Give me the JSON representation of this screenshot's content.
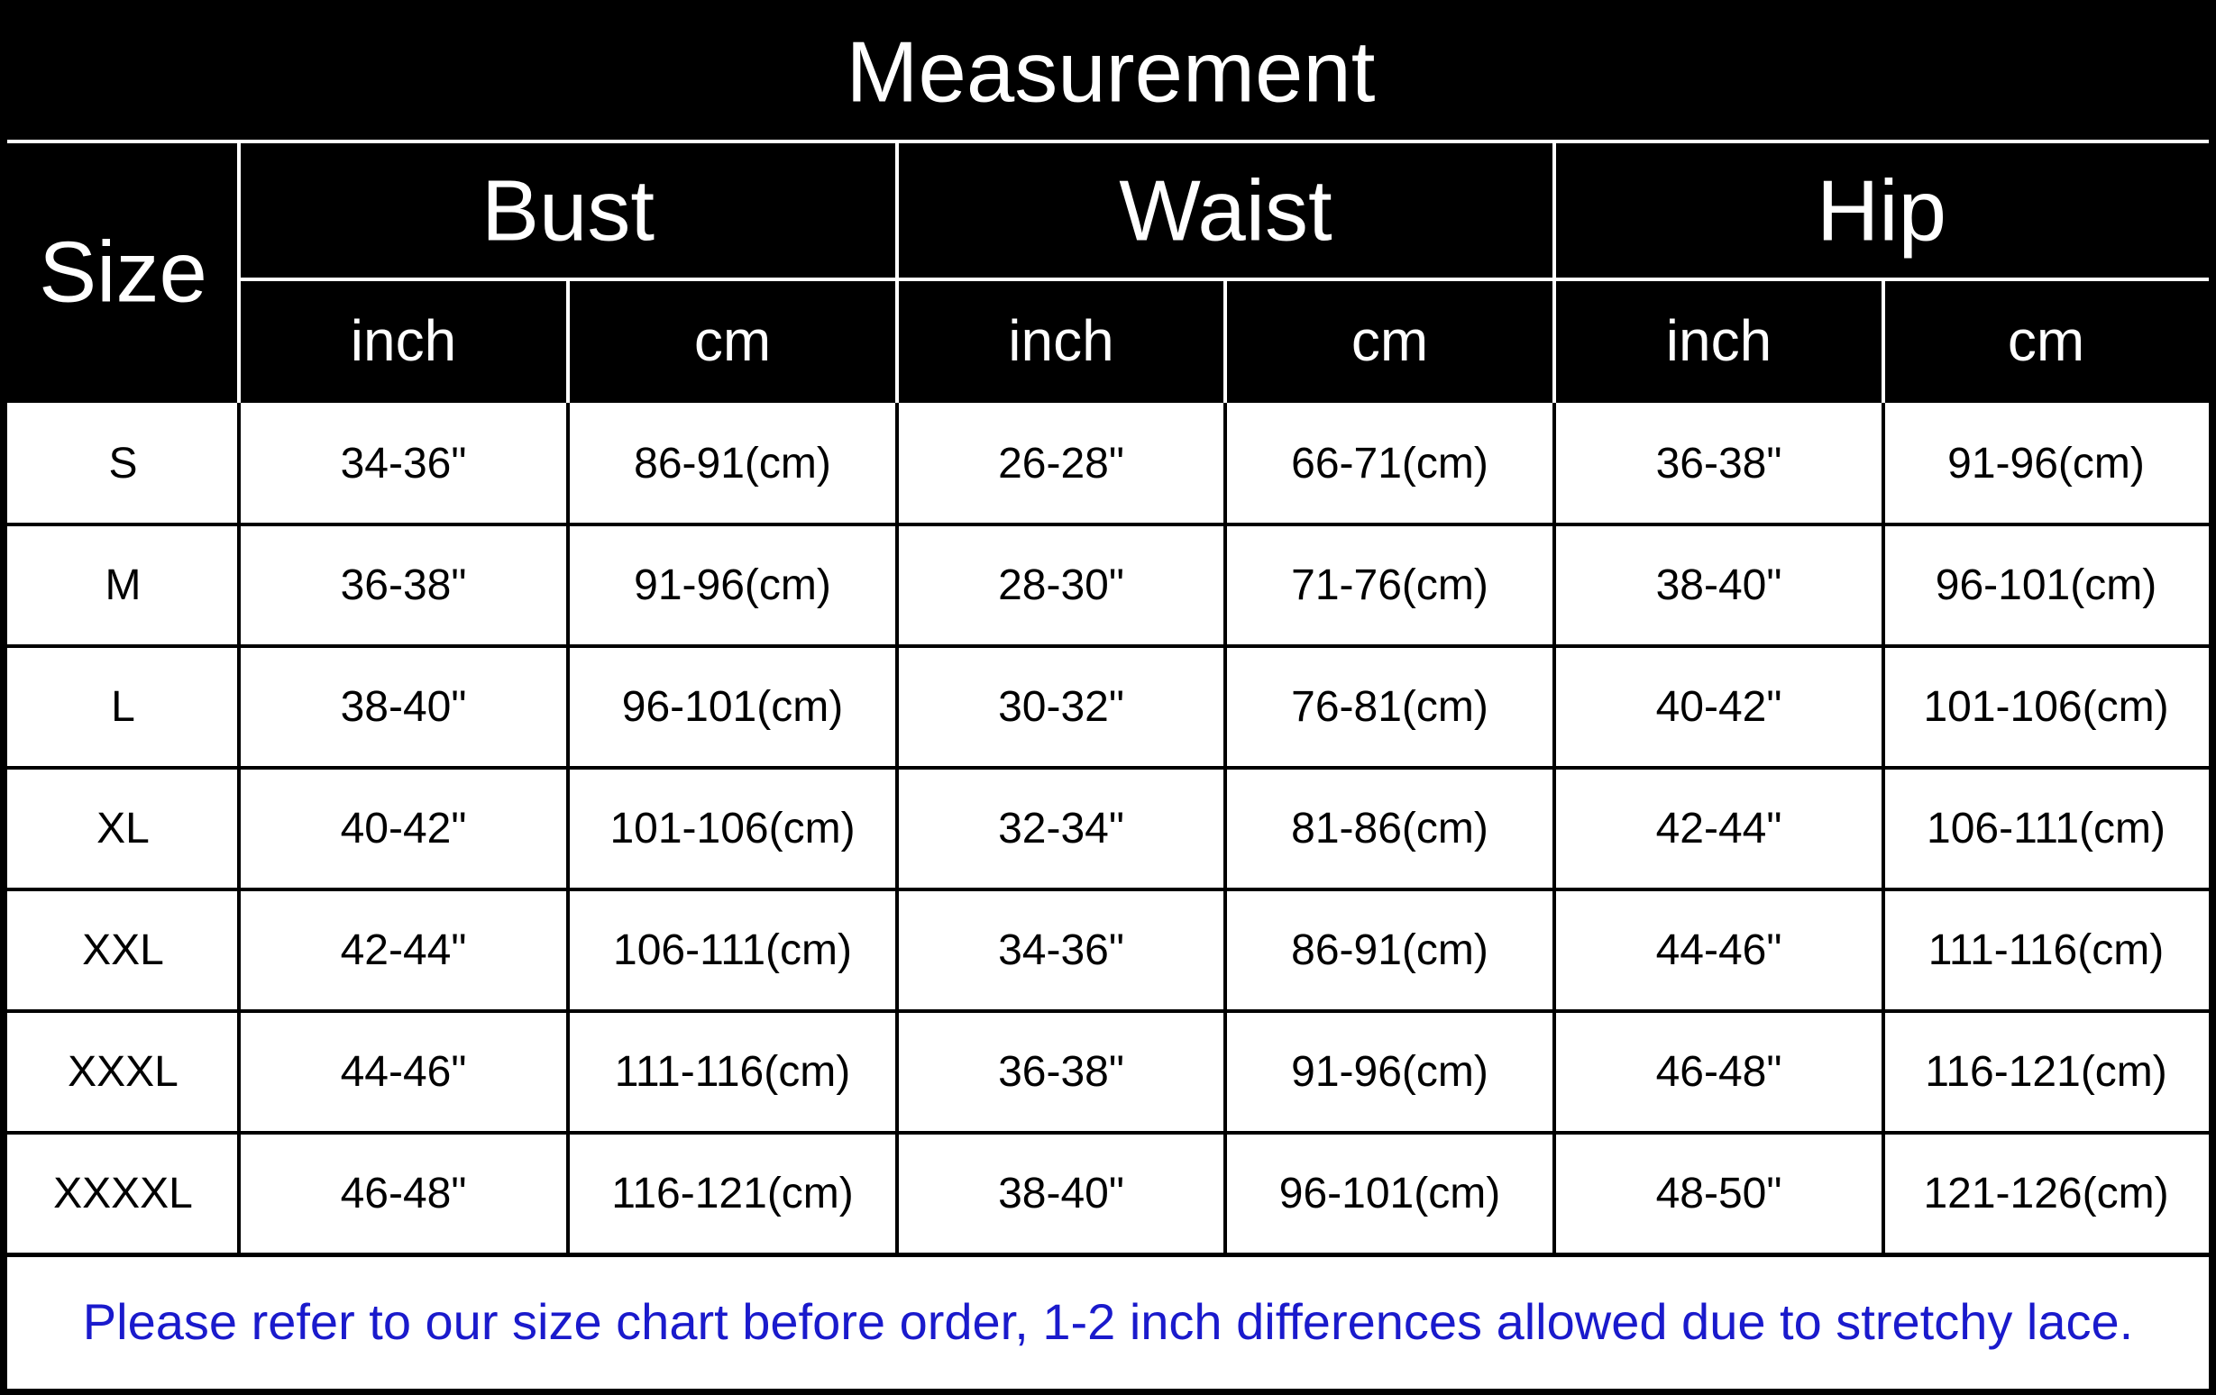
{
  "title": "Measurement",
  "table": {
    "size_header": "Size",
    "groups": [
      {
        "name": "Bust",
        "units": [
          "inch",
          "cm"
        ]
      },
      {
        "name": "Waist",
        "units": [
          "inch",
          "cm"
        ]
      },
      {
        "name": "Hip",
        "units": [
          "inch",
          "cm"
        ]
      }
    ],
    "rows": [
      [
        "S",
        "34-36\"",
        "86-91(cm)",
        "26-28\"",
        "66-71(cm)",
        "36-38\"",
        "91-96(cm)"
      ],
      [
        "M",
        "36-38\"",
        "91-96(cm)",
        "28-30\"",
        "71-76(cm)",
        "38-40\"",
        "96-101(cm)"
      ],
      [
        "L",
        "38-40\"",
        "96-101(cm)",
        "30-32\"",
        "76-81(cm)",
        "40-42\"",
        "101-106(cm)"
      ],
      [
        "XL",
        "40-42\"",
        "101-106(cm)",
        "32-34\"",
        "81-86(cm)",
        "42-44\"",
        "106-111(cm)"
      ],
      [
        "XXL",
        "42-44\"",
        "106-111(cm)",
        "34-36\"",
        "86-91(cm)",
        "44-46\"",
        "111-116(cm)"
      ],
      [
        "XXXL",
        "44-46\"",
        "111-116(cm)",
        "36-38\"",
        "91-96(cm)",
        "46-48\"",
        "116-121(cm)"
      ],
      [
        "XXXXL",
        "46-48\"",
        "116-121(cm)",
        "38-40\"",
        "96-101(cm)",
        "48-50\"",
        "121-126(cm)"
      ]
    ]
  },
  "note": "Please refer to our size chart before order, 1-2 inch differences allowed due to stretchy lace."
}
